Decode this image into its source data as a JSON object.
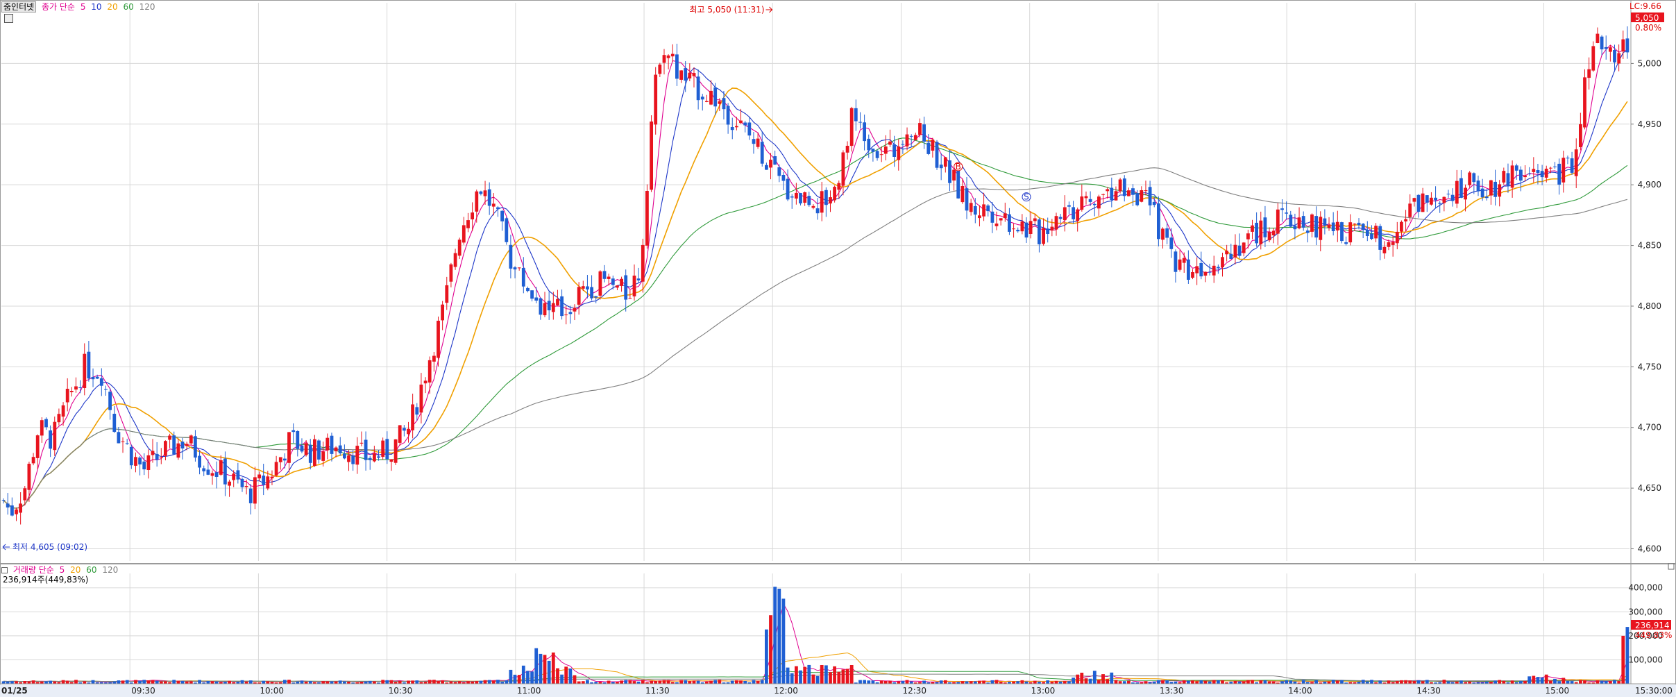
{
  "chart_data": {
    "type": "candlestick",
    "date": "01/25",
    "instrument_label": "줌인터넷",
    "legend_price": {
      "name": "종가 단순",
      "periods": [
        "5",
        "10",
        "20",
        "60",
        "120"
      ],
      "colors": [
        "#e0008f",
        "#1d36c8",
        "#f0a000",
        "#2f9a3a",
        "#7f7f7f"
      ]
    },
    "legend_volume": {
      "name": "거래량 단순",
      "periods": [
        "5",
        "20",
        "60",
        "120"
      ],
      "colors": [
        "#e0008f",
        "#f0a000",
        "#2f9a3a",
        "#7f7f7f"
      ],
      "current_value": "236,914주(449,83%)"
    },
    "price_axis": {
      "ticks": [
        4600,
        4650,
        4700,
        4750,
        4800,
        4850,
        4900,
        4950,
        5000
      ],
      "tick_labels": [
        "4,600",
        "4,650",
        "4,700",
        "4,750",
        "4,800",
        "4,850",
        "4,900",
        "4,950",
        "5,000"
      ],
      "range": [
        4590,
        5050
      ]
    },
    "volume_axis": {
      "ticks": [
        100000,
        200000,
        300000,
        400000
      ],
      "tick_labels": [
        "100,000",
        "200,000",
        "300,000",
        "400,000"
      ],
      "range": [
        0,
        460000
      ]
    },
    "time_axis": {
      "labels": [
        "01/25",
        "09:30",
        "10:00",
        "10:30",
        "11:00",
        "11:30",
        "12:00",
        "12:30",
        "13:00",
        "13:30",
        "14:00",
        "14:30",
        "15:00",
        "15:30:00"
      ]
    },
    "annotations": {
      "high": "최고 5,050 (11:31)",
      "low": "최저 4,605 (09:02)",
      "lc": "LC:9.66",
      "last_price": "5,050",
      "last_change": "0.80%",
      "last_volume": "236,914",
      "last_volume_pct": "449.83%",
      "buy_marker": "B",
      "sell_marker": "S"
    },
    "colors": {
      "up": "#e8141e",
      "down": "#1f5fd3",
      "grid": "#d8d8d8"
    }
  }
}
